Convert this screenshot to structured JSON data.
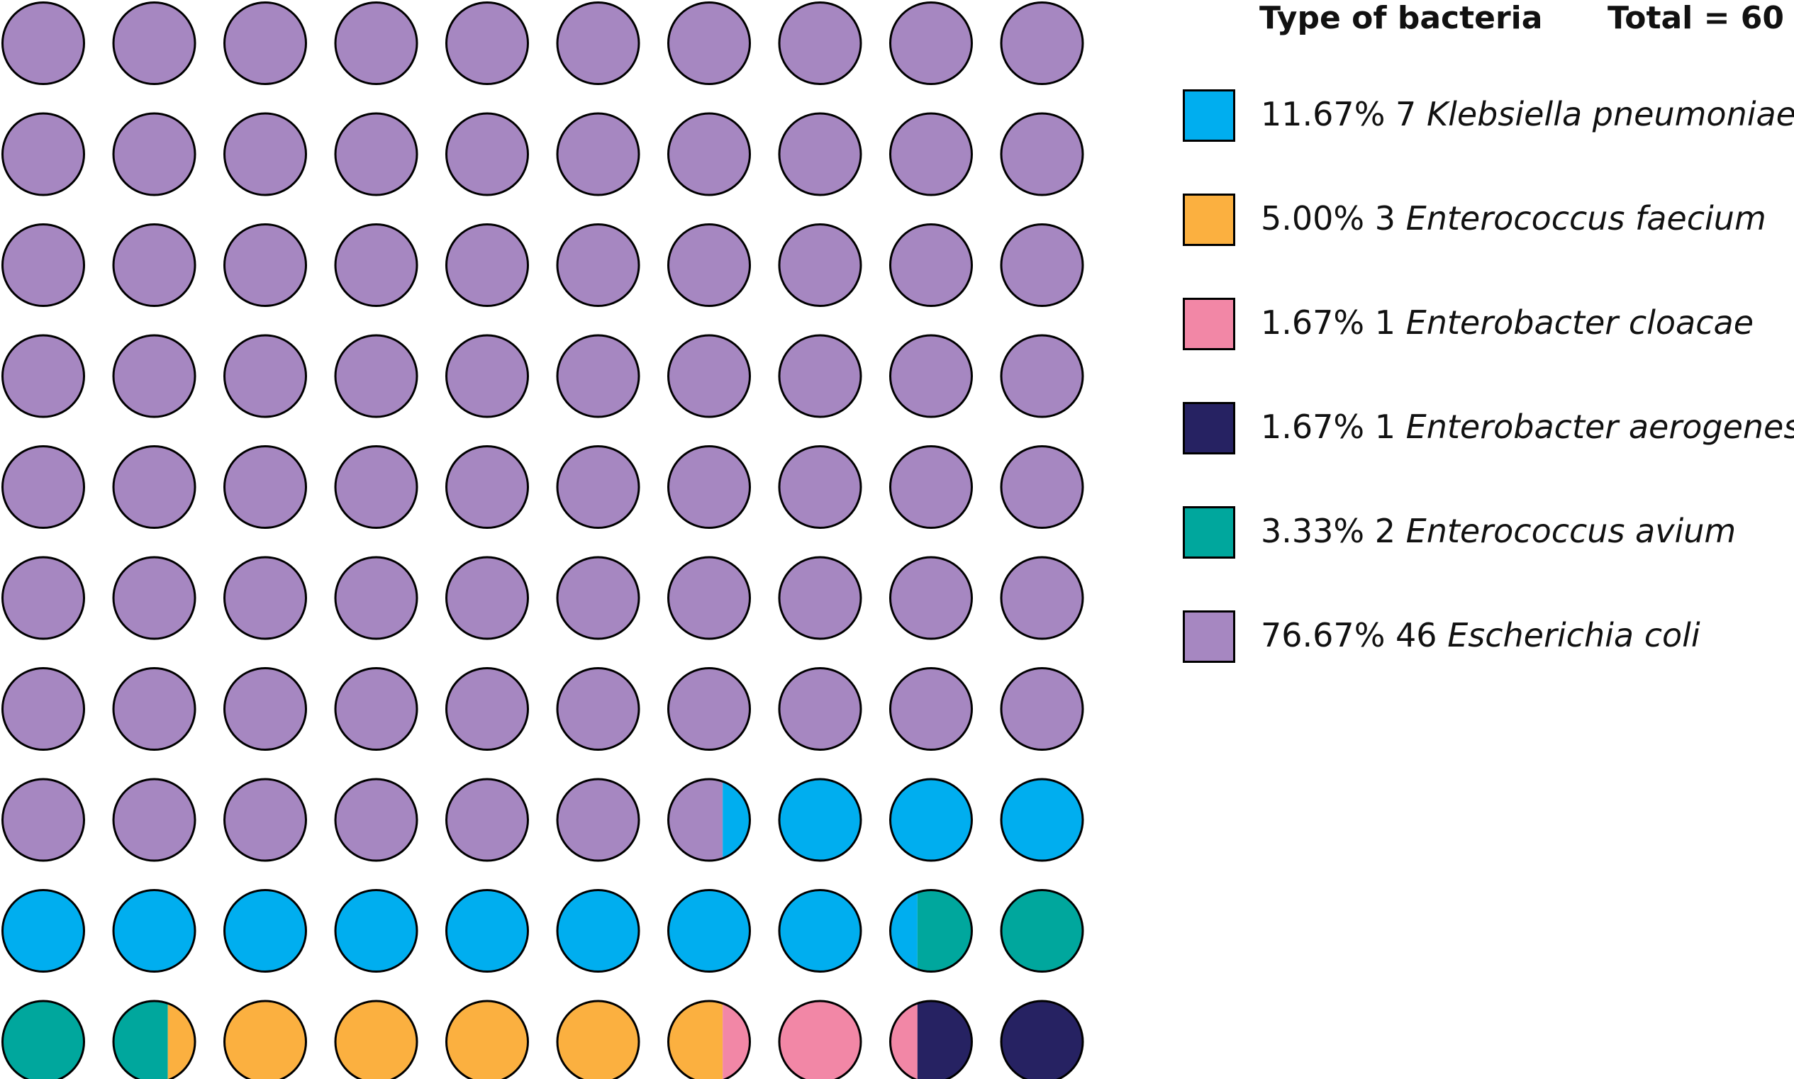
{
  "chart_data": {
    "type": "waffle",
    "title": "Type of bacteria",
    "total_label": "Total = 60",
    "total": 60,
    "grid": {
      "rows": 10,
      "cols": 10
    },
    "categories": [
      {
        "name": "Klebsiella pneumoniae",
        "percent_label": "11.67%",
        "count_label": "7",
        "count": 7,
        "color": "#00AEEF"
      },
      {
        "name": "Enterococcus faecium",
        "percent_label": "5.00%",
        "count_label": "3",
        "count": 3,
        "color": "#FBB040"
      },
      {
        "name": "Enterobacter cloacae",
        "percent_label": "1.67%",
        "count_label": "1",
        "count": 1,
        "color": "#F287A6"
      },
      {
        "name": "Enterobacter aerogenes",
        "percent_label": "1.67%",
        "count_label": "1",
        "count": 1,
        "color": "#262262"
      },
      {
        "name": "Enterococcus avium",
        "percent_label": "3.33%",
        "count_label": "2",
        "count": 2,
        "color": "#00A79D"
      },
      {
        "name": "Escherichia coli",
        "percent_label": "76.67%",
        "count_label": "46",
        "count": 46,
        "color": "#A687C1"
      }
    ],
    "fill_order": [
      "Escherichia coli",
      "Klebsiella pneumoniae",
      "Enterococcus avium",
      "Enterococcus faecium",
      "Enterobacter cloacae",
      "Enterobacter aerogenes"
    ]
  }
}
